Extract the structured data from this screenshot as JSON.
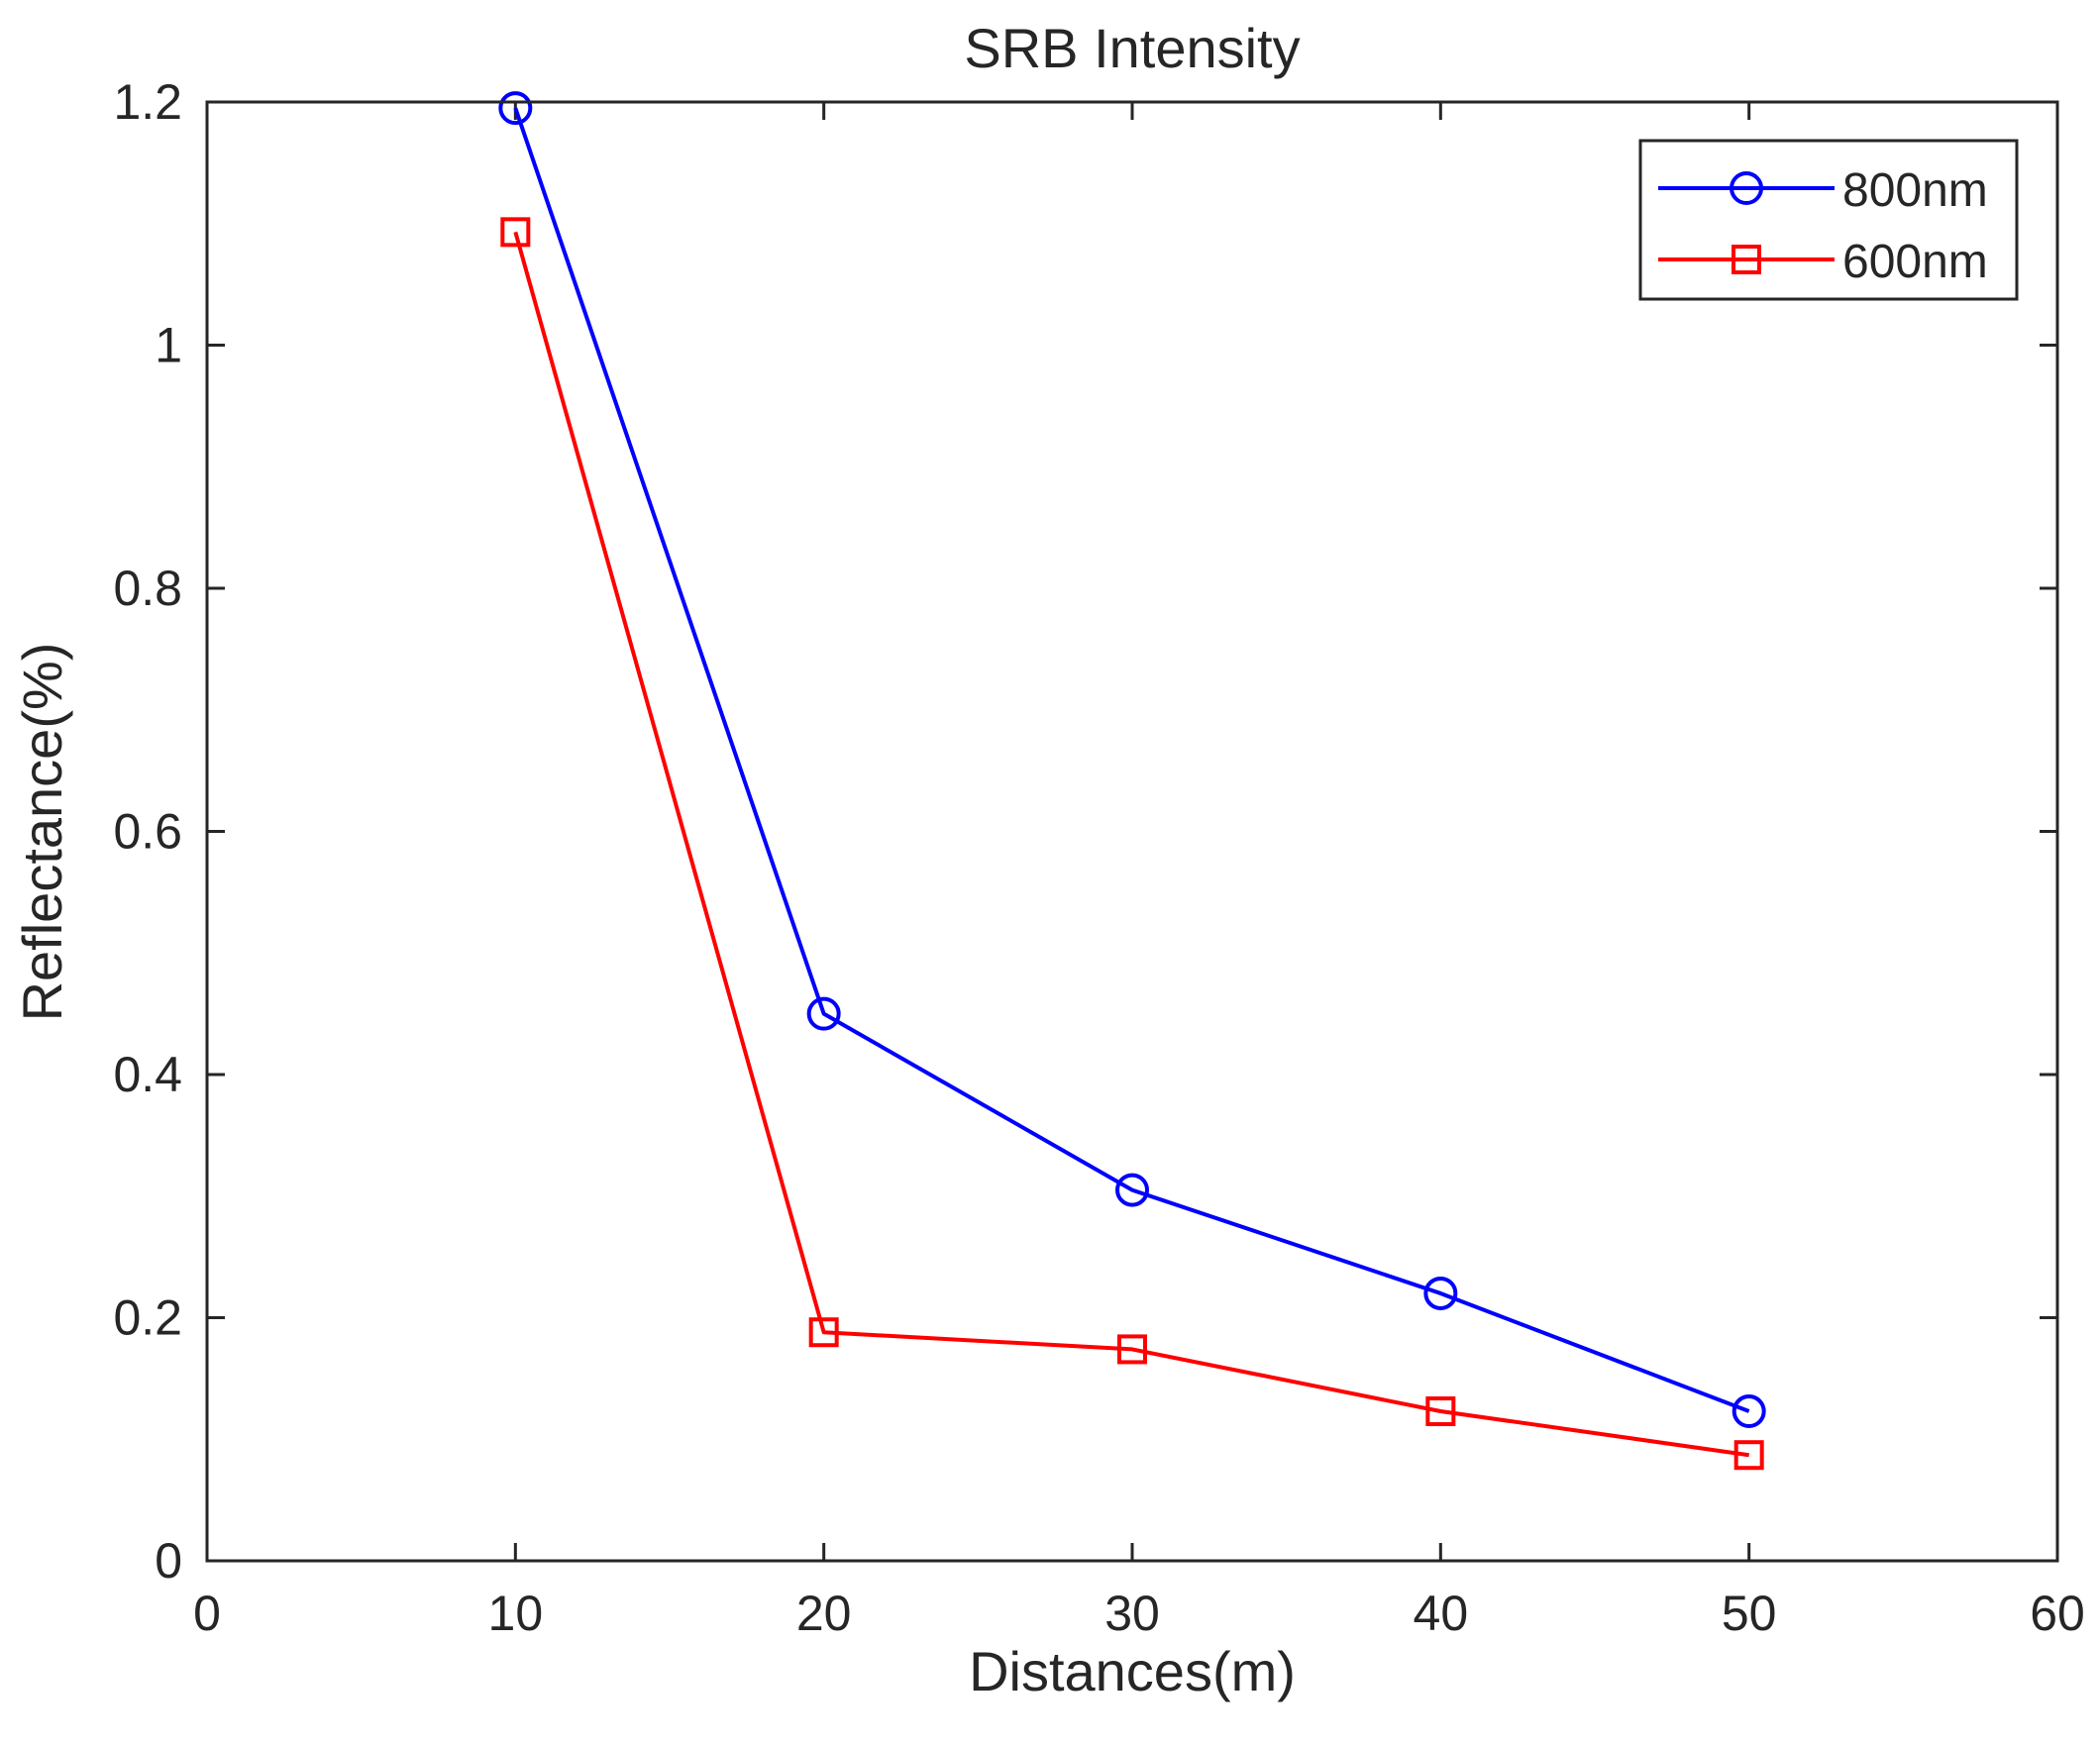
{
  "chart_data": {
    "type": "line",
    "title": "SRB Intensity",
    "xlabel": "Distances(m)",
    "ylabel": "Reflectance(%)",
    "xlim": [
      0,
      60
    ],
    "ylim": [
      0,
      1.2
    ],
    "x_ticks": [
      0,
      10,
      20,
      30,
      40,
      50,
      60
    ],
    "y_ticks": [
      0,
      0.2,
      0.4,
      0.6,
      0.8,
      1,
      1.2
    ],
    "x_tick_labels": [
      "0",
      "10",
      "20",
      "30",
      "40",
      "50",
      "60"
    ],
    "y_tick_labels": [
      "0",
      "0.2",
      "0.4",
      "0.6",
      "0.8",
      "1",
      "1.2"
    ],
    "grid": false,
    "legend_position": "top-right",
    "x": [
      10,
      20,
      30,
      40,
      50
    ],
    "series": [
      {
        "name": "800nm",
        "values": [
          1.195,
          0.45,
          0.305,
          0.22,
          0.123
        ],
        "color": "#0000ff",
        "marker": "circle"
      },
      {
        "name": "600nm",
        "values": [
          1.093,
          0.188,
          0.174,
          0.123,
          0.087
        ],
        "color": "#ff0000",
        "marker": "square"
      }
    ]
  }
}
